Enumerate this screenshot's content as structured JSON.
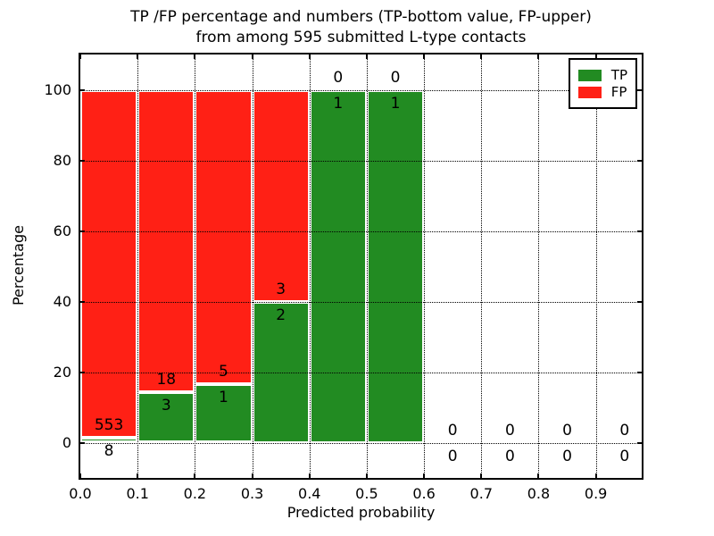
{
  "title": {
    "line1": "TP /FP percentage and numbers (TP-bottom value, FP-upper)",
    "line2": "from among 595 submitted L-type contacts"
  },
  "axes": {
    "xlabel": "Predicted probability",
    "ylabel": "Percentage"
  },
  "legend": {
    "items": [
      {
        "label": "TP",
        "color": "#228b22"
      },
      {
        "label": "FP",
        "color": "#ff2015"
      }
    ],
    "position": "upper right"
  },
  "colors": {
    "tp": "#228b22",
    "fp": "#ff2015",
    "bar_edge": "#ffffff",
    "grid": "#000000",
    "background": "#ffffff"
  },
  "chart_data": {
    "type": "bar",
    "stacked": true,
    "title": "TP /FP percentage and numbers (TP-bottom value, FP-upper) from among 595 submitted L-type contacts",
    "total_contacts": 595,
    "xlabel": "Predicted probability",
    "ylabel": "Percentage",
    "xlim": [
      0,
      0.98
    ],
    "ylim": [
      -10,
      110
    ],
    "xtick_values": [
      0.0,
      0.1,
      0.2,
      0.3,
      0.4,
      0.5,
      0.6,
      0.7,
      0.8,
      0.9
    ],
    "xtick_labels": [
      "0.0",
      "0.1",
      "0.2",
      "0.3",
      "0.4",
      "0.5",
      "0.6",
      "0.7",
      "0.8",
      "0.9"
    ],
    "ytick_values": [
      0,
      20,
      40,
      60,
      80,
      100
    ],
    "ytick_labels": [
      "0",
      "20",
      "40",
      "60",
      "80",
      "100"
    ],
    "grid": true,
    "legend_position": "upper right",
    "bins": [
      {
        "range": [
          0.0,
          0.1
        ],
        "tp": 8,
        "fp": 553,
        "tp_percent": 1.43
      },
      {
        "range": [
          0.1,
          0.2
        ],
        "tp": 3,
        "fp": 18,
        "tp_percent": 14.29
      },
      {
        "range": [
          0.2,
          0.3
        ],
        "tp": 1,
        "fp": 5,
        "tp_percent": 16.67
      },
      {
        "range": [
          0.3,
          0.4
        ],
        "tp": 2,
        "fp": 3,
        "tp_percent": 40.0
      },
      {
        "range": [
          0.4,
          0.5
        ],
        "tp": 1,
        "fp": 0,
        "tp_percent": 100.0
      },
      {
        "range": [
          0.5,
          0.6
        ],
        "tp": 1,
        "fp": 0,
        "tp_percent": 100.0
      },
      {
        "range": [
          0.6,
          0.7
        ],
        "tp": 0,
        "fp": 0,
        "tp_percent": 0
      },
      {
        "range": [
          0.7,
          0.8
        ],
        "tp": 0,
        "fp": 0,
        "tp_percent": 0
      },
      {
        "range": [
          0.8,
          0.9
        ],
        "tp": 0,
        "fp": 0,
        "tp_percent": 0
      },
      {
        "range": [
          0.9,
          1.0
        ],
        "tp": 0,
        "fp": 0,
        "tp_percent": 0
      }
    ],
    "series": [
      {
        "name": "TP",
        "values": [
          1.43,
          14.29,
          16.67,
          40.0,
          100.0,
          100.0,
          0,
          0,
          0,
          0
        ]
      },
      {
        "name": "FP",
        "values": [
          98.57,
          85.71,
          83.33,
          60.0,
          0,
          0,
          0,
          0,
          0,
          0
        ]
      }
    ]
  }
}
